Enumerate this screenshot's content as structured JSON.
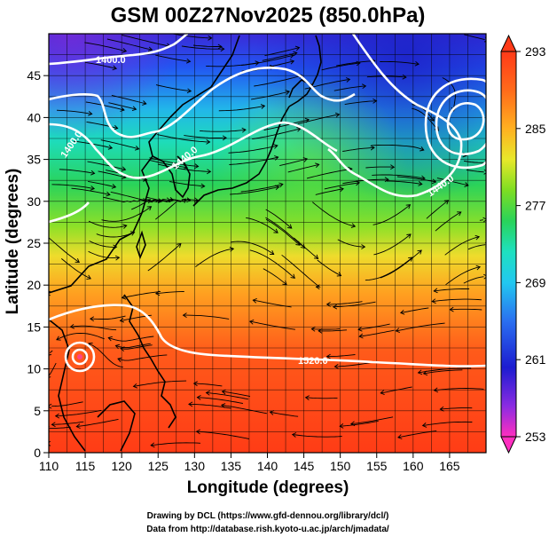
{
  "title": "GSM 00Z27Nov2025 (850.0hPa)",
  "map": {
    "xlabel": "Longitude (degrees)",
    "ylabel": "Latitude  (degrees)",
    "x_range": [
      110,
      170
    ],
    "y_range": [
      0,
      50
    ],
    "x_ticks": [
      "110",
      "115",
      "120",
      "125",
      "130",
      "135",
      "140",
      "145",
      "150",
      "155",
      "160",
      "165"
    ],
    "y_ticks": [
      "0",
      "5",
      "10",
      "15",
      "20",
      "25",
      "30",
      "35",
      "40",
      "45"
    ],
    "grid": true,
    "contour_labels": [
      "1400.0",
      "1400.0",
      "1440.0",
      "1440.0",
      "1520.0"
    ]
  },
  "colorbar": {
    "ticks": [
      "293",
      "285",
      "277",
      "269",
      "261",
      "253"
    ],
    "min": 253,
    "max": 293,
    "colors": [
      "#ff2fc0",
      "#8a2be2",
      "#1c1cd0",
      "#2a6ff0",
      "#22c8f0",
      "#1ee0c0",
      "#29d35a",
      "#7ede22",
      "#e8e82a",
      "#ffb020",
      "#ff6a1a",
      "#ff3a18"
    ]
  },
  "credits": [
    "Drawing by DCL (https://www.gfd-dennou.org/library/dcl/)",
    "Data from http://database.rish.kyoto-u.ac.jp/arch/jmadata/"
  ]
}
